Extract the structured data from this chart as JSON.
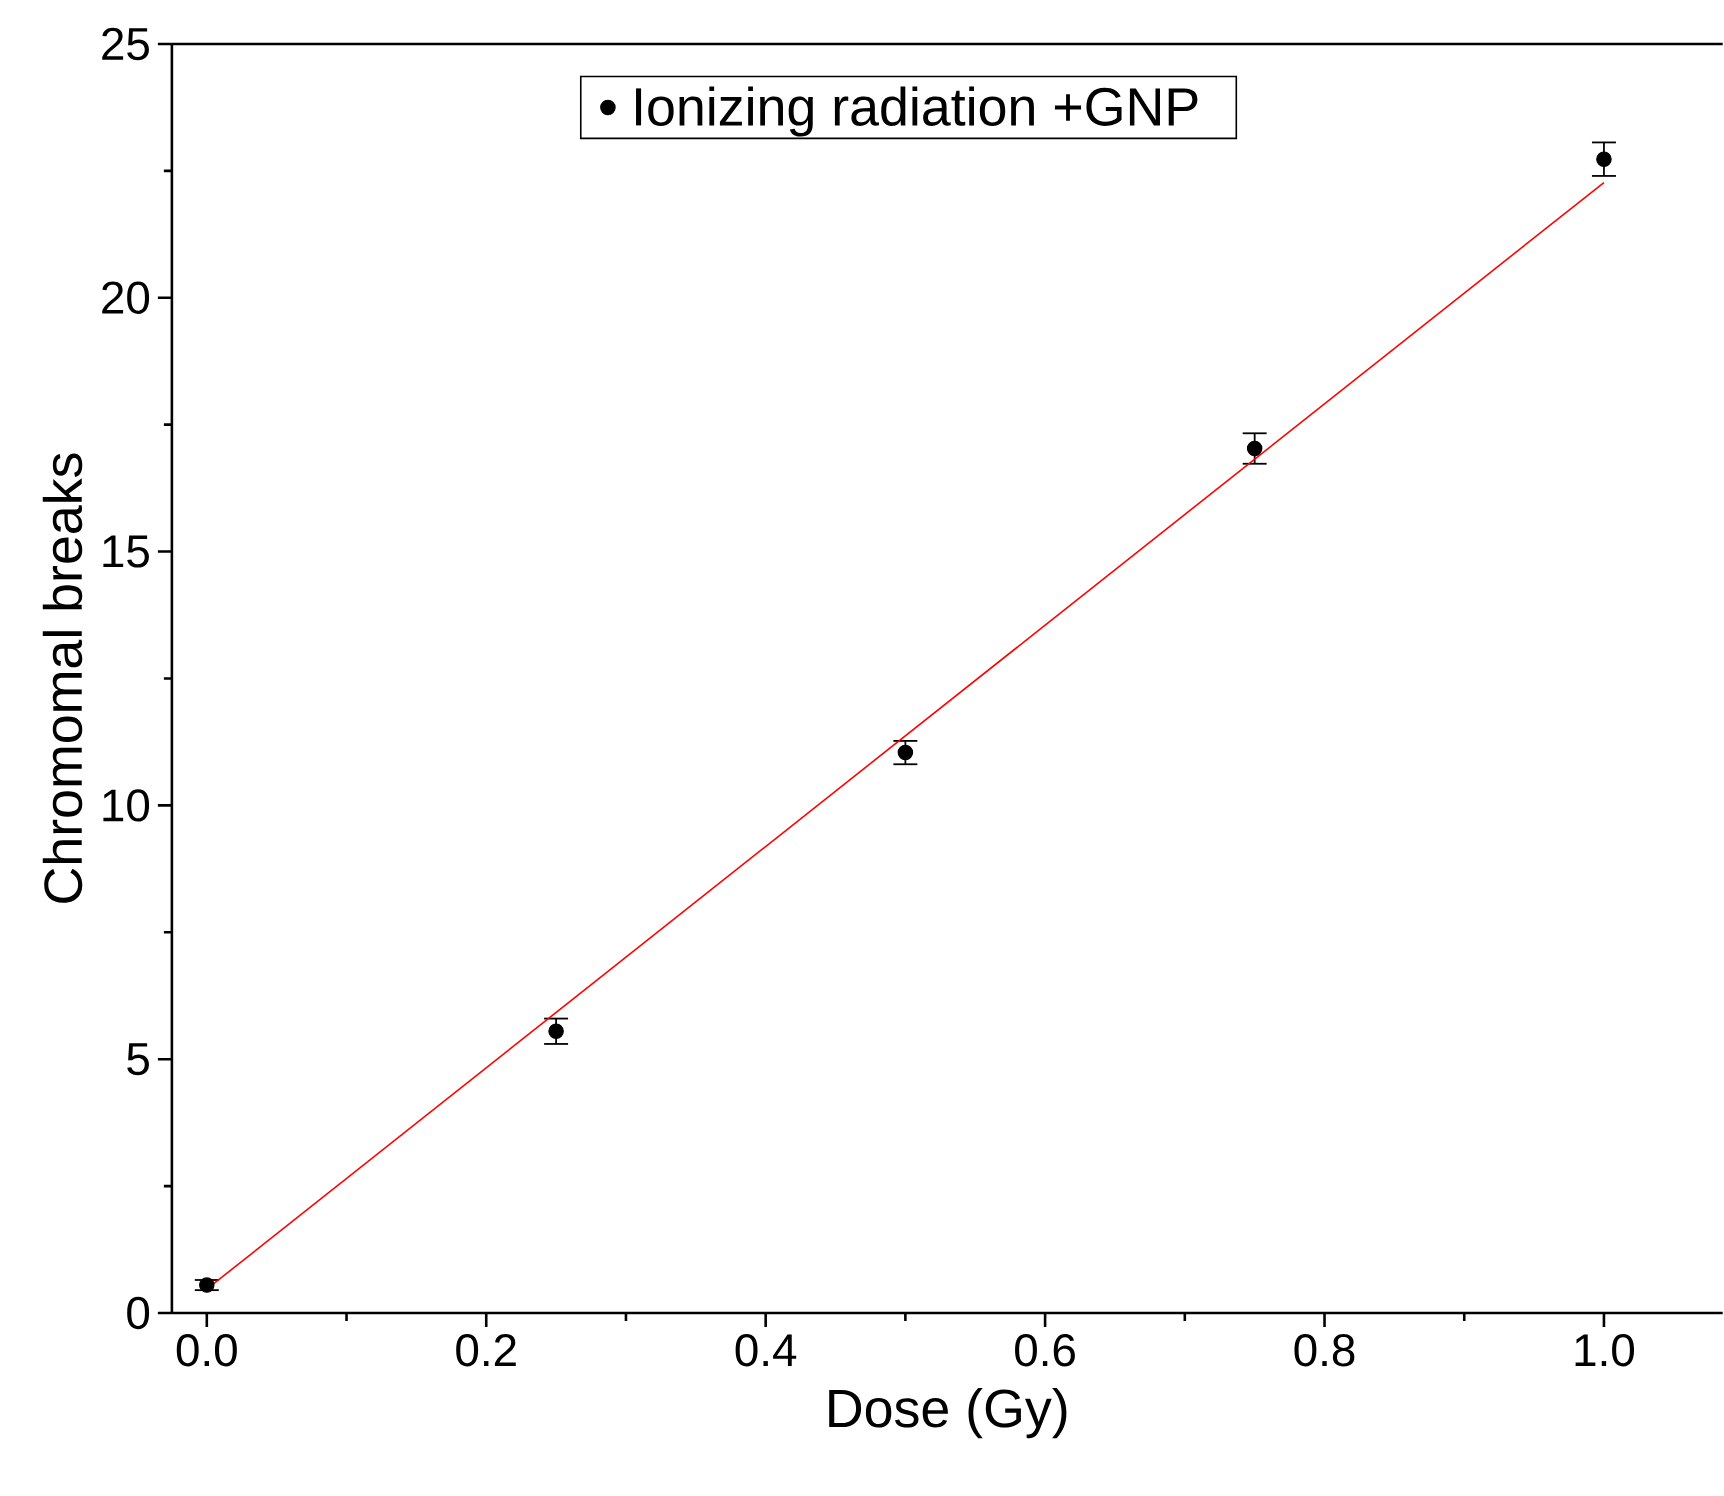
{
  "chart_data": {
    "type": "scatter",
    "xlabel": "Dose (Gy)",
    "ylabel": "Chromomal breaks",
    "x": [
      0,
      0.25,
      0.5,
      0.75,
      1.0
    ],
    "xlim": [
      -0.025,
      1.085
    ],
    "ylim": [
      0,
      25
    ],
    "xticks": [
      {
        "value": 0,
        "label": "0.0"
      },
      0.2,
      0.4,
      0.6,
      0.8,
      {
        "value": 1,
        "label": "1.0"
      }
    ],
    "yticks": [
      0,
      5,
      10,
      15,
      20,
      25
    ],
    "legend": "top",
    "series": [
      {
        "name": "Ionizing radiation +GNP",
        "color": "#000000",
        "marker": "circle",
        "values": [
          0.55,
          5.55,
          11.04,
          17.03,
          22.73
        ],
        "errors": [
          0.1,
          0.25,
          0.23,
          0.3,
          0.33
        ]
      },
      {
        "type": "line",
        "x": [
          0,
          1.0
        ],
        "values": [
          0.47,
          22.27
        ],
        "color": "#ff0000",
        "marker": "none"
      }
    ]
  }
}
